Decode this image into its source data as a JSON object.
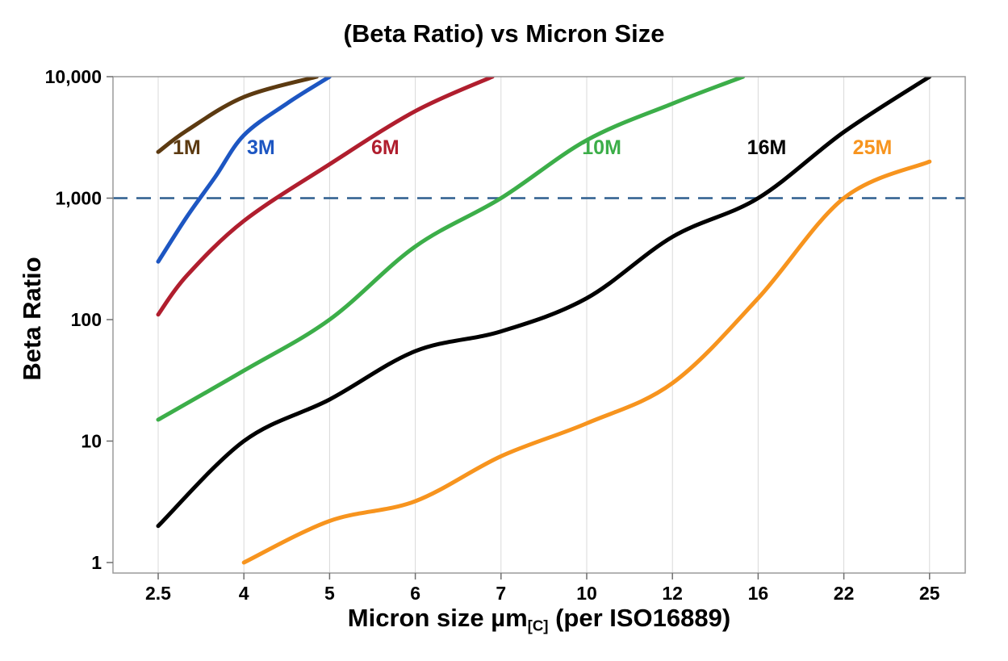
{
  "title": "(Beta Ratio) vs Micron Size",
  "x_axis": {
    "label": "Micron size µm[C] (per ISO16889)",
    "label_prefix": "Micron size µm",
    "label_subscript": "[C]",
    "label_suffix": " (per ISO16889)",
    "tick_labels": [
      "2.5",
      "4",
      "5",
      "6",
      "7",
      "10",
      "12",
      "16",
      "22",
      "25"
    ]
  },
  "y_axis": {
    "label": "Beta Ratio",
    "scale": "log",
    "tick_labels": [
      "1",
      "10",
      "100",
      "1,000",
      "10,000"
    ],
    "tick_values": [
      1,
      10,
      100,
      1000,
      10000
    ]
  },
  "reference_line": {
    "value": 1000,
    "style": "dashed",
    "color": "#2d5e8e"
  },
  "colors": {
    "grid": "#d9d9d9",
    "plot_border": "#9a9a9a",
    "axis_text": "#000000"
  },
  "chart_data": {
    "type": "line",
    "title": "(Beta Ratio) vs Micron Size",
    "xlabel": "Micron size µm[C] (per ISO16889)",
    "ylabel": "Beta Ratio",
    "xlabel_parts": {
      "prefix": "Micron size µm",
      "subscript": "[C]",
      "suffix": " (per ISO16889)"
    },
    "x_ticks": [
      2.5,
      4,
      5,
      6,
      7,
      10,
      12,
      16,
      22,
      25
    ],
    "x_tick_labels": [
      "2.5",
      "4",
      "5",
      "6",
      "7",
      "10",
      "12",
      "16",
      "22",
      "25"
    ],
    "y_scale": "log",
    "ylim": [
      1,
      10000
    ],
    "y_ticks": [
      1,
      10,
      100,
      1000,
      10000
    ],
    "y_tick_labels": [
      "1",
      "10",
      "100",
      "1,000",
      "10,000"
    ],
    "grid": "vertical",
    "legend_position": "inline-labels",
    "reference_value": 1000,
    "series": [
      {
        "name": "1M",
        "color": "#5c3a11",
        "label_at": {
          "x": 3.0,
          "y": 2300
        },
        "points": [
          [
            2.5,
            2400
          ],
          [
            3,
            3600
          ],
          [
            4,
            6800
          ],
          [
            4.85,
            10000
          ]
        ]
      },
      {
        "name": "3M",
        "color": "#1d56c2",
        "label_at": {
          "x": 4.2,
          "y": 2300
        },
        "points": [
          [
            2.5,
            300
          ],
          [
            3,
            700
          ],
          [
            3.5,
            1500
          ],
          [
            4,
            3300
          ],
          [
            4.5,
            6000
          ],
          [
            5,
            10000
          ]
        ]
      },
      {
        "name": "6M",
        "color": "#b01e2e",
        "label_at": {
          "x": 5.65,
          "y": 2300
        },
        "points": [
          [
            2.5,
            110
          ],
          [
            3,
            230
          ],
          [
            4,
            650
          ],
          [
            5,
            1900
          ],
          [
            6,
            5200
          ],
          [
            6.9,
            10000
          ]
        ]
      },
      {
        "name": "10M",
        "color": "#3cae49",
        "label_at": {
          "x": 10.35,
          "y": 2300
        },
        "points": [
          [
            2.5,
            15
          ],
          [
            4,
            38
          ],
          [
            5,
            100
          ],
          [
            6,
            400
          ],
          [
            7,
            1000
          ],
          [
            10,
            3000
          ],
          [
            12,
            6000
          ],
          [
            15.3,
            10000
          ]
        ]
      },
      {
        "name": "16M",
        "color": "#000000",
        "label_at": {
          "x": 16.6,
          "y": 2300
        },
        "points": [
          [
            2.5,
            2
          ],
          [
            4,
            10
          ],
          [
            5,
            22
          ],
          [
            6,
            55
          ],
          [
            7,
            80
          ],
          [
            10,
            150
          ],
          [
            12,
            480
          ],
          [
            16,
            1000
          ],
          [
            22,
            3500
          ],
          [
            25,
            10000
          ]
        ]
      },
      {
        "name": "25M",
        "color": "#f7941e",
        "label_at": {
          "x": 23.0,
          "y": 2300
        },
        "points": [
          [
            4,
            1
          ],
          [
            5,
            2.2
          ],
          [
            6,
            3.2
          ],
          [
            7,
            7.5
          ],
          [
            10,
            14
          ],
          [
            12,
            30
          ],
          [
            16,
            150
          ],
          [
            22,
            1000
          ],
          [
            25,
            2000
          ]
        ]
      }
    ]
  }
}
